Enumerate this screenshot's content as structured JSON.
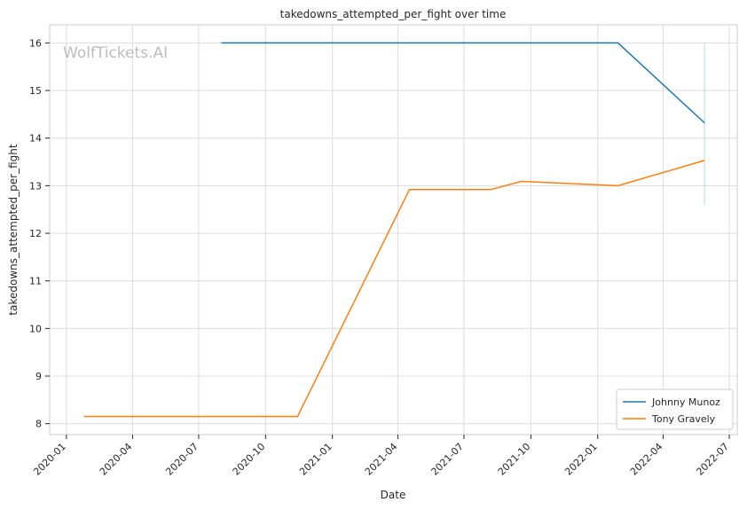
{
  "chart_data": {
    "type": "line",
    "title": "takedowns_attempted_per_fight over time",
    "xlabel": "Date",
    "ylabel": "takedowns_attempted_per_fight",
    "watermark": "WolfTickets.AI",
    "xlim": [
      "2019-12-09",
      "2022-07-12"
    ],
    "ylim": [
      7.77,
      16.38
    ],
    "x_ticks": [
      "2020-01",
      "2020-04",
      "2020-07",
      "2020-10",
      "2021-01",
      "2021-04",
      "2021-07",
      "2021-10",
      "2022-01",
      "2022-04",
      "2022-07"
    ],
    "y_ticks": [
      8,
      9,
      10,
      11,
      12,
      13,
      14,
      15,
      16
    ],
    "grid": true,
    "legend_position": "lower-right",
    "series": [
      {
        "name": "Johnny Munoz",
        "color": "#1f77b4",
        "points": [
          {
            "x": "2020-08-01",
            "y": 16.0
          },
          {
            "x": "2022-01-29",
            "y": 16.0
          },
          {
            "x": "2022-05-28",
            "y": 14.32
          }
        ]
      },
      {
        "name": "Tony Gravely",
        "color": "#ff7f0e",
        "points": [
          {
            "x": "2020-01-25",
            "y": 8.15
          },
          {
            "x": "2020-11-14",
            "y": 8.15
          },
          {
            "x": "2021-04-17",
            "y": 12.92
          },
          {
            "x": "2021-08-07",
            "y": 12.92
          },
          {
            "x": "2021-09-18",
            "y": 13.09
          },
          {
            "x": "2022-01-29",
            "y": 13.0
          },
          {
            "x": "2022-05-28",
            "y": 13.53
          }
        ]
      }
    ],
    "annotations": [
      {
        "type": "vertical-band",
        "x": "2022-05-28",
        "y_range": [
          12.6,
          16.0
        ],
        "color": "#8fd3c8"
      }
    ]
  }
}
